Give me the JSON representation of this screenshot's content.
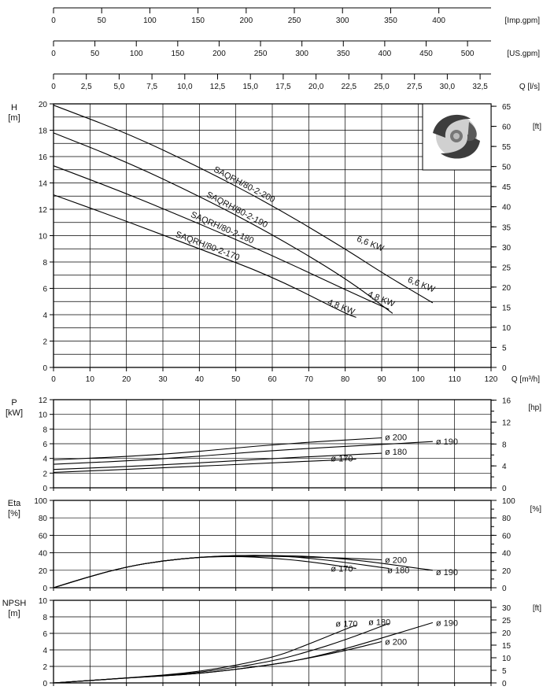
{
  "top_axes": [
    {
      "unit": "[Imp.gpm]",
      "ticks": [
        "0",
        "50",
        "100",
        "150",
        "200",
        "250",
        "300",
        "350",
        "400"
      ],
      "values": [
        0,
        50,
        100,
        150,
        200,
        250,
        300,
        350,
        400
      ],
      "factor": 0.2642
    },
    {
      "unit": "[US.gpm]",
      "ticks": [
        "0",
        "50",
        "100",
        "150",
        "200",
        "250",
        "300",
        "350",
        "400",
        "450",
        "500"
      ],
      "values": [
        0,
        50,
        100,
        150,
        200,
        250,
        300,
        350,
        400,
        450,
        500
      ],
      "factor": 0.2271
    },
    {
      "unit": "Q [l/s]",
      "ticks": [
        "0",
        "2,5",
        "5,0",
        "7,5",
        "10,0",
        "12,5",
        "15,0",
        "17,5",
        "20,0",
        "22,5",
        "25,0",
        "27,5",
        "30,0",
        "32,5"
      ],
      "values": [
        0,
        2.5,
        5,
        7.5,
        10,
        12.5,
        15,
        17.5,
        20,
        22.5,
        25,
        27.5,
        30,
        32.5
      ],
      "factor": 3.6
    }
  ],
  "x_axis": {
    "unit": "Q [m³/h]",
    "ticks": [
      "0",
      "10",
      "20",
      "30",
      "40",
      "50",
      "60",
      "70",
      "80",
      "90",
      "100",
      "110",
      "120"
    ],
    "range": [
      0,
      120
    ]
  },
  "logo_icon": "pump-impeller-icon",
  "chart_data": [
    {
      "type": "line",
      "panel": "H",
      "ylabel": "H\n[m]",
      "ylabel_right": "[ft]",
      "ylim": [
        0,
        20
      ],
      "yticks": [
        "0",
        "2",
        "4",
        "6",
        "8",
        "10",
        "12",
        "14",
        "16",
        "18",
        "20"
      ],
      "yticks_right": [
        "0",
        "5",
        "10",
        "15",
        "20",
        "25",
        "30",
        "35",
        "40",
        "45",
        "50",
        "55",
        "60",
        "65"
      ],
      "series": [
        {
          "name": "SAQRH/80-2-200",
          "x": [
            0,
            20,
            40,
            60,
            80,
            90,
            104
          ],
          "y": [
            19.9,
            17.8,
            15.2,
            12.3,
            9.0,
            7.2,
            4.9
          ]
        },
        {
          "name": "SAQRH/80-2-190",
          "x": [
            0,
            20,
            40,
            60,
            80,
            93
          ],
          "y": [
            17.8,
            15.6,
            13.0,
            10.1,
            6.8,
            4.1
          ]
        },
        {
          "name": "SAQRH/80-2-180",
          "x": [
            0,
            20,
            40,
            60,
            80,
            92
          ],
          "y": [
            15.3,
            13.2,
            10.9,
            8.5,
            5.9,
            4.4
          ]
        },
        {
          "name": "SAQRH/80-2-170",
          "x": [
            0,
            20,
            40,
            60,
            80,
            83
          ],
          "y": [
            13.1,
            11.1,
            9.0,
            6.9,
            4.1,
            3.8
          ]
        }
      ],
      "annotations": [
        {
          "text": "6,6 KW",
          "x": 83,
          "y": 9.6
        },
        {
          "text": "6,6 KW",
          "x": 97,
          "y": 6.5
        },
        {
          "text": "4,8 KW",
          "x": 86,
          "y": 5.4
        },
        {
          "text": "4,8 KW",
          "x": 75,
          "y": 4.8
        }
      ]
    },
    {
      "type": "line",
      "panel": "P",
      "ylabel": "P\n[kW]",
      "ylabel_right": "[hp]",
      "ylim": [
        0,
        12
      ],
      "yticks": [
        "0",
        "2",
        "4",
        "6",
        "8",
        "10",
        "12"
      ],
      "yticks_right": [
        "0",
        "4",
        "8",
        "12",
        "16"
      ],
      "series": [
        {
          "name": "ø 200",
          "x": [
            0,
            30,
            60,
            90
          ],
          "y": [
            3.8,
            4.5,
            5.9,
            6.8
          ]
        },
        {
          "name": "ø 190",
          "x": [
            0,
            30,
            60,
            90,
            104
          ],
          "y": [
            3.2,
            3.9,
            5.1,
            5.9,
            6.3
          ]
        },
        {
          "name": "ø 180",
          "x": [
            0,
            30,
            60,
            90
          ],
          "y": [
            2.5,
            3.1,
            4.0,
            4.7
          ]
        },
        {
          "name": "ø 170",
          "x": [
            0,
            30,
            60,
            83
          ],
          "y": [
            2.1,
            2.7,
            3.4,
            3.9
          ]
        }
      ]
    },
    {
      "type": "line",
      "panel": "Eta",
      "ylabel": "Eta\n[%]",
      "ylabel_right": "[%]",
      "ylim": [
        0,
        100
      ],
      "yticks": [
        "0",
        "20",
        "40",
        "60",
        "80",
        "100"
      ],
      "yticks_right": [
        "0",
        "20",
        "40",
        "60",
        "80",
        "100"
      ],
      "series": [
        {
          "name": "ø 200",
          "x": [
            0,
            10,
            20,
            30,
            40,
            50,
            60,
            70,
            80,
            90
          ],
          "y": [
            0,
            13,
            24,
            31,
            35,
            36,
            36,
            35,
            34,
            32
          ]
        },
        {
          "name": "ø 190",
          "x": [
            0,
            10,
            20,
            30,
            40,
            50,
            60,
            70,
            80,
            90,
            104
          ],
          "y": [
            0,
            13,
            24,
            31,
            35,
            37,
            37,
            36,
            33,
            28,
            20
          ]
        },
        {
          "name": "ø 180",
          "x": [
            0,
            10,
            20,
            30,
            40,
            50,
            60,
            70,
            80,
            92
          ],
          "y": [
            0,
            13,
            24,
            31,
            35,
            37,
            37,
            34,
            29,
            22
          ]
        },
        {
          "name": "ø 170",
          "x": [
            0,
            10,
            20,
            30,
            40,
            50,
            60,
            70,
            83
          ],
          "y": [
            0,
            13,
            24,
            31,
            35,
            36,
            34,
            30,
            22
          ]
        }
      ]
    },
    {
      "type": "line",
      "panel": "NPSH",
      "ylabel": "NPSH\n[m]",
      "ylabel_right": "[ft]",
      "ylim": [
        0,
        10
      ],
      "yticks": [
        "0",
        "2",
        "4",
        "6",
        "8",
        "10"
      ],
      "yticks_right": [
        "0",
        "5",
        "10",
        "15",
        "20",
        "25",
        "30"
      ],
      "series": [
        {
          "name": "ø 170",
          "x": [
            0,
            20,
            40,
            60,
            70,
            80,
            83
          ],
          "y": [
            0,
            0.6,
            1.3,
            3.0,
            4.7,
            6.5,
            7.0
          ]
        },
        {
          "name": "ø 180",
          "x": [
            0,
            20,
            40,
            60,
            70,
            80,
            92
          ],
          "y": [
            0,
            0.6,
            1.2,
            2.6,
            3.8,
            5.2,
            7.2
          ]
        },
        {
          "name": "ø 190",
          "x": [
            0,
            20,
            40,
            60,
            70,
            80,
            104
          ],
          "y": [
            0,
            0.6,
            1.1,
            2.2,
            3.0,
            4.1,
            7.3
          ]
        },
        {
          "name": "ø 200",
          "x": [
            0,
            20,
            40,
            60,
            70,
            80,
            90
          ],
          "y": [
            0,
            0.6,
            1.1,
            2.2,
            3.0,
            3.9,
            5.0
          ]
        }
      ]
    }
  ]
}
